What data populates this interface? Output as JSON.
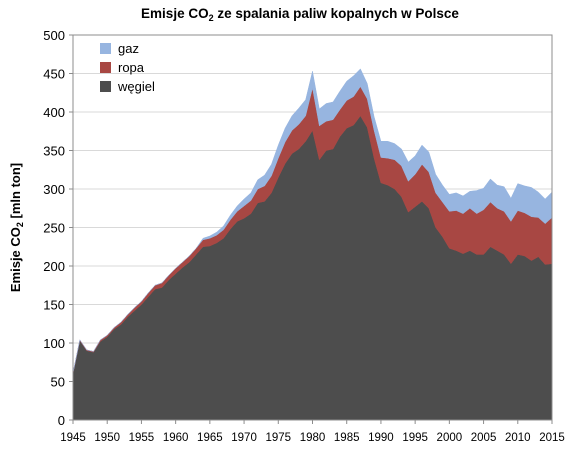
{
  "chart_data": {
    "type": "area",
    "stacked": true,
    "title": "Emisje CO₂ ze spalania paliw kopalnych w Polsce",
    "title_parts": {
      "pre": "Emisje CO",
      "sub": "2",
      "post": " ze spalania paliw kopalnych w Polsce"
    },
    "ylabel_parts": {
      "pre": "Emisje CO",
      "sub": "2",
      "post": "  [mln ton]"
    },
    "xlabel": "",
    "xlim": [
      1945,
      2015
    ],
    "ylim": [
      0,
      500
    ],
    "xticks": [
      1945,
      1950,
      1955,
      1960,
      1965,
      1970,
      1975,
      1980,
      1985,
      1990,
      1995,
      2000,
      2005,
      2010,
      2015
    ],
    "yticks": [
      0,
      50,
      100,
      150,
      200,
      250,
      300,
      350,
      400,
      450,
      500
    ],
    "grid": "horizontal",
    "legend_position": "top-left",
    "x": [
      1945,
      1946,
      1947,
      1948,
      1949,
      1950,
      1951,
      1952,
      1953,
      1954,
      1955,
      1956,
      1957,
      1958,
      1959,
      1960,
      1961,
      1962,
      1963,
      1964,
      1965,
      1966,
      1967,
      1968,
      1969,
      1970,
      1971,
      1972,
      1973,
      1974,
      1975,
      1976,
      1977,
      1978,
      1979,
      1980,
      1981,
      1982,
      1983,
      1984,
      1985,
      1986,
      1987,
      1988,
      1989,
      1990,
      1991,
      1992,
      1993,
      1994,
      1995,
      1996,
      1997,
      1998,
      1999,
      2000,
      2001,
      2002,
      2003,
      2004,
      2005,
      2006,
      2007,
      2008,
      2009,
      2010,
      2011,
      2012,
      2013,
      2014,
      2015
    ],
    "series": [
      {
        "name": "węgiel",
        "color": "#4d4d4d",
        "values": [
          60,
          103,
          90,
          88,
          102,
          108,
          118,
          124,
          134,
          142,
          150,
          160,
          170,
          172,
          182,
          190,
          198,
          205,
          215,
          225,
          226,
          230,
          236,
          248,
          258,
          262,
          268,
          282,
          284,
          295,
          315,
          333,
          346,
          352,
          362,
          376,
          338,
          350,
          352,
          368,
          379,
          383,
          395,
          380,
          340,
          308,
          305,
          300,
          290,
          270,
          277,
          284,
          275,
          250,
          238,
          223,
          220,
          216,
          220,
          215,
          215,
          225,
          220,
          215,
          203,
          215,
          213,
          207,
          212,
          202,
          203
        ]
      },
      {
        "name": "ropa",
        "color": "#a84743",
        "values": [
          1,
          1,
          1,
          1,
          2,
          2,
          2,
          3,
          3,
          4,
          4,
          5,
          5,
          6,
          6,
          7,
          7,
          8,
          8,
          9,
          10,
          10,
          11,
          12,
          13,
          16,
          17,
          18,
          20,
          22,
          25,
          28,
          30,
          32,
          33,
          55,
          44,
          38,
          38,
          35,
          36,
          37,
          38,
          37,
          36,
          33,
          35,
          38,
          40,
          40,
          42,
          48,
          47,
          45,
          45,
          48,
          52,
          52,
          55,
          53,
          58,
          58,
          55,
          56,
          55,
          57,
          56,
          57,
          51,
          53,
          60
        ]
      },
      {
        "name": "gaz",
        "color": "#97b5e0",
        "values": [
          0,
          0,
          0,
          0,
          0,
          0,
          0,
          0,
          0,
          0,
          0,
          0,
          0,
          0,
          0,
          0,
          0,
          0,
          0,
          2,
          3,
          4,
          5,
          6,
          7,
          9,
          10,
          12,
          14,
          15,
          17,
          18,
          19,
          21,
          21,
          22,
          22,
          23,
          23,
          24,
          25,
          27,
          23,
          20,
          18,
          21,
          22,
          21,
          22,
          25,
          24,
          25,
          26,
          24,
          22,
          22,
          23,
          23,
          22,
          30,
          28,
          30,
          30,
          32,
          30,
          35,
          35,
          38,
          33,
          32,
          33
        ]
      }
    ]
  }
}
